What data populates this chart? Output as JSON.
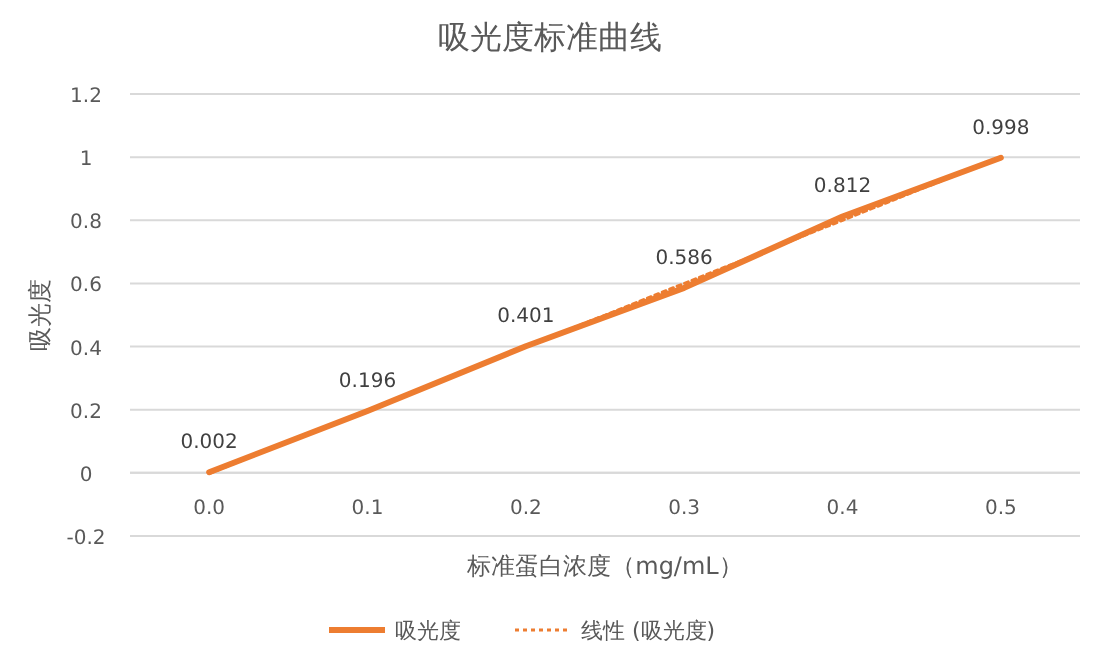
{
  "chart_data": {
    "type": "line",
    "title": "吸光度标准曲线",
    "xlabel": "标准蛋白浓度（mg/mL）",
    "ylabel": "吸光度",
    "categories": [
      "0.0",
      "0.1",
      "0.2",
      "0.3",
      "0.4",
      "0.5"
    ],
    "series": [
      {
        "name": "吸光度",
        "color": "#ed7d31",
        "values": [
          0.002,
          0.196,
          0.401,
          0.586,
          0.812,
          0.998
        ],
        "line_style": "solid",
        "data_labels": true
      },
      {
        "name": "线性 (吸光度)",
        "color": "#ed7d31",
        "values": [
          -0.002,
          0.199,
          0.399,
          0.6,
          0.8,
          1.0
        ],
        "line_style": "dotted"
      }
    ],
    "ylim": [
      -0.2,
      1.2
    ],
    "yticks": [
      -0.2,
      0,
      0.2,
      0.4,
      0.6,
      0.8,
      1,
      1.2
    ],
    "grid": "y",
    "legend": "bottom",
    "marker": "none"
  }
}
